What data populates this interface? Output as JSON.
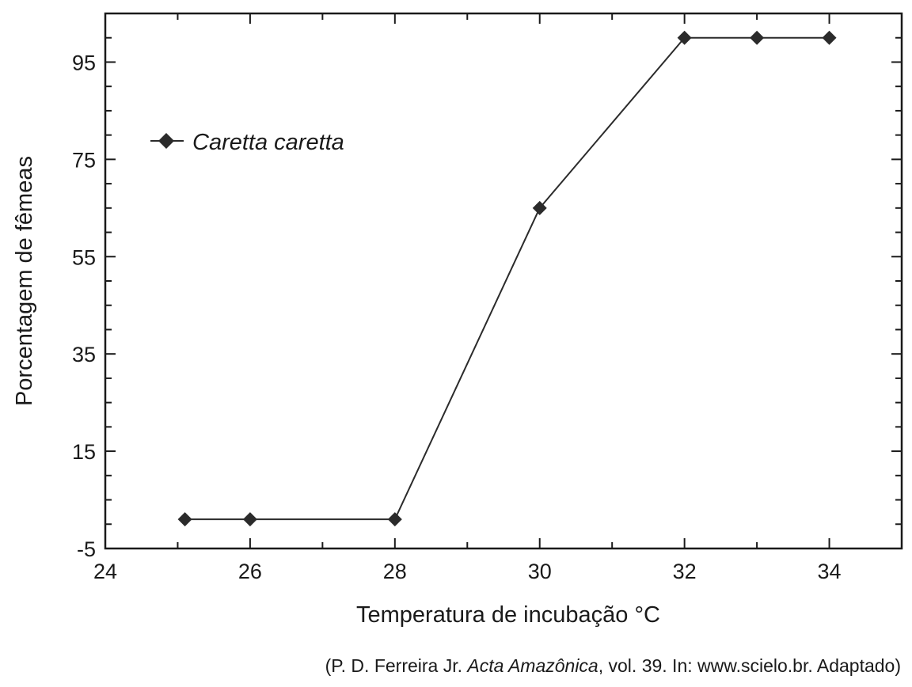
{
  "chart_data": {
    "type": "line",
    "title": "",
    "xlabel": "Temperatura de incubação °C",
    "ylabel": "Porcentagem de fêmeas",
    "xlim": [
      24,
      35
    ],
    "ylim": [
      -5,
      105
    ],
    "x_ticks": [
      24,
      26,
      28,
      30,
      32,
      34
    ],
    "y_ticks": [
      -5,
      15,
      35,
      55,
      75,
      95
    ],
    "grid": false,
    "legend_position": "upper-left",
    "series": [
      {
        "name": "Caretta caretta",
        "marker": "diamond",
        "color": "#2b2b2b",
        "points": [
          {
            "x": 25.1,
            "y": 1
          },
          {
            "x": 26,
            "y": 1
          },
          {
            "x": 28,
            "y": 1
          },
          {
            "x": 30,
            "y": 65
          },
          {
            "x": 32,
            "y": 100
          },
          {
            "x": 33,
            "y": 100
          },
          {
            "x": 34,
            "y": 100
          }
        ]
      }
    ]
  },
  "caption": {
    "before": "(P. D. Ferreira Jr. ",
    "journal": "Acta Amazônica",
    "after": ", vol. 39. In: www.scielo.br. Adaptado)"
  }
}
